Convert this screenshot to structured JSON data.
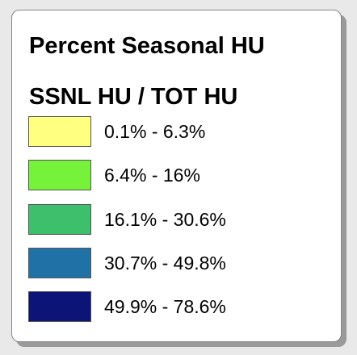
{
  "legend": {
    "title": "Percent Seasonal HU",
    "subtitle": "SSNL HU / TOT HU",
    "items": [
      {
        "label": "0.1% - 6.3%",
        "color": "#ffff80"
      },
      {
        "label": "6.4% - 16%",
        "color": "#76f23a"
      },
      {
        "label": "16.1% - 30.6%",
        "color": "#3dbf6b"
      },
      {
        "label": "30.7% - 49.8%",
        "color": "#2071a6"
      },
      {
        "label": "49.9% - 78.6%",
        "color": "#0c1477"
      }
    ]
  }
}
